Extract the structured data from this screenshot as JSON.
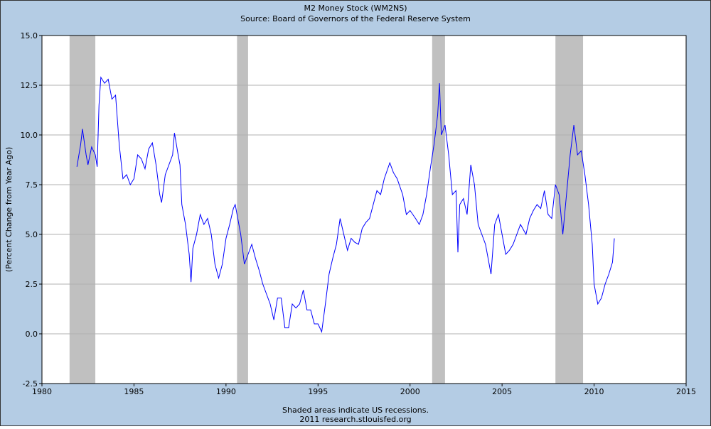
{
  "chart_data": {
    "type": "line",
    "title": "M2 Money Stock (WM2NS)",
    "subtitle": "Source: Board of Governors of the Federal Reserve System",
    "y_label": "(Percent Change from Year Ago)",
    "notes": [
      "Shaded areas indicate US recessions.",
      "2011 research.stlouisfed.org"
    ],
    "color": "#0000ff",
    "recession_color": "#c0c0c0",
    "grid": true,
    "recessions": [
      [
        1981.5,
        1982.9
      ],
      [
        1990.6,
        1991.2
      ],
      [
        2001.2,
        2001.9
      ],
      [
        2007.9,
        2009.4
      ]
    ],
    "xlim": [
      1980,
      2015
    ],
    "xticks": [
      1980,
      1985,
      1990,
      1995,
      2000,
      2005,
      2010,
      2015
    ],
    "ylim": [
      -2.5,
      15
    ],
    "yticks": [
      -2.5,
      {
        "value": 0,
        "label": "0.0"
      },
      2.5,
      {
        "value": 5,
        "label": "5.0"
      },
      7.5,
      {
        "value": 10,
        "label": "10.0"
      },
      12.5,
      {
        "value": 15,
        "label": "15.0"
      }
    ],
    "x": [
      1981.9,
      1982.1,
      1982.2,
      1982.4,
      1982.5,
      1982.7,
      1982.9,
      1983.0,
      1983.1,
      1983.2,
      1983.4,
      1983.6,
      1983.8,
      1984.0,
      1984.2,
      1984.4,
      1984.6,
      1984.8,
      1985.0,
      1985.2,
      1985.4,
      1985.6,
      1985.8,
      1986.0,
      1986.2,
      1986.4,
      1986.5,
      1986.7,
      1986.9,
      1987.1,
      1987.2,
      1987.4,
      1987.5,
      1987.6,
      1987.8,
      1988.0,
      1988.1,
      1988.2,
      1988.4,
      1988.6,
      1988.8,
      1989.0,
      1989.2,
      1989.4,
      1989.6,
      1989.8,
      1990.0,
      1990.2,
      1990.4,
      1990.5,
      1990.7,
      1990.8,
      1991.0,
      1991.2,
      1991.4,
      1991.6,
      1991.8,
      1992.0,
      1992.2,
      1992.4,
      1992.6,
      1992.8,
      1993.0,
      1993.2,
      1993.4,
      1993.6,
      1993.8,
      1994.0,
      1994.2,
      1994.4,
      1994.6,
      1994.8,
      1995.0,
      1995.2,
      1995.4,
      1995.6,
      1995.8,
      1996.0,
      1996.2,
      1996.4,
      1996.6,
      1996.8,
      1997.0,
      1997.2,
      1997.4,
      1997.6,
      1997.8,
      1998.0,
      1998.2,
      1998.4,
      1998.6,
      1998.9,
      1999.1,
      1999.3,
      1999.6,
      1999.8,
      2000.0,
      2000.3,
      2000.5,
      2000.7,
      2000.9,
      2001.1,
      2001.3,
      2001.5,
      2001.6,
      2001.7,
      2001.9,
      2002.1,
      2002.3,
      2002.5,
      2002.6,
      2002.7,
      2002.9,
      2003.1,
      2003.3,
      2003.5,
      2003.7,
      2003.9,
      2004.1,
      2004.4,
      2004.6,
      2004.8,
      2005.0,
      2005.2,
      2005.4,
      2005.6,
      2005.8,
      2006.0,
      2006.3,
      2006.5,
      2006.7,
      2006.9,
      2007.1,
      2007.3,
      2007.5,
      2007.7,
      2007.9,
      2008.1,
      2008.3,
      2008.5,
      2008.7,
      2008.9,
      2009.1,
      2009.3,
      2009.5,
      2009.7,
      2009.9,
      2010.0,
      2010.2,
      2010.4,
      2010.6,
      2010.8,
      2010.9,
      2011.0,
      2011.1
    ],
    "values": [
      8.4,
      9.5,
      10.3,
      9.0,
      8.5,
      9.4,
      9.0,
      8.4,
      11.5,
      12.9,
      12.6,
      12.8,
      11.8,
      12.0,
      9.5,
      7.8,
      8.0,
      7.5,
      7.8,
      9.0,
      8.8,
      8.3,
      9.3,
      9.6,
      8.5,
      7.0,
      6.6,
      8.0,
      8.5,
      9.0,
      10.1,
      9.0,
      8.5,
      6.5,
      5.5,
      4.0,
      2.6,
      4.3,
      5.0,
      6.0,
      5.5,
      5.8,
      5.0,
      3.5,
      2.8,
      3.5,
      4.8,
      5.5,
      6.3,
      6.5,
      5.5,
      5.0,
      3.5,
      4.0,
      4.5,
      3.8,
      3.2,
      2.5,
      2.0,
      1.5,
      0.7,
      1.8,
      1.8,
      0.3,
      0.3,
      1.5,
      1.3,
      1.5,
      2.2,
      1.2,
      1.2,
      0.5,
      0.5,
      0.1,
      1.5,
      3.0,
      3.8,
      4.5,
      5.8,
      5.0,
      4.2,
      4.8,
      4.6,
      4.5,
      5.3,
      5.6,
      5.8,
      6.5,
      7.2,
      7.0,
      7.8,
      8.6,
      8.1,
      7.8,
      7.0,
      6.0,
      6.2,
      5.8,
      5.5,
      6.0,
      7.0,
      8.3,
      9.5,
      11.0,
      12.6,
      10.0,
      10.5,
      9.0,
      7.0,
      7.2,
      4.1,
      6.5,
      6.8,
      6.0,
      8.5,
      7.5,
      5.5,
      5.0,
      4.5,
      3.0,
      5.5,
      6.0,
      5.0,
      4.0,
      4.2,
      4.5,
      5.0,
      5.5,
      5.0,
      5.8,
      6.2,
      6.5,
      6.3,
      7.2,
      6.0,
      5.8,
      7.5,
      7.0,
      5.0,
      7.0,
      9.0,
      10.5,
      9.0,
      9.2,
      8.0,
      6.5,
      4.5,
      2.5,
      1.5,
      1.8,
      2.5,
      3.0,
      3.3,
      3.6,
      4.8
    ]
  }
}
